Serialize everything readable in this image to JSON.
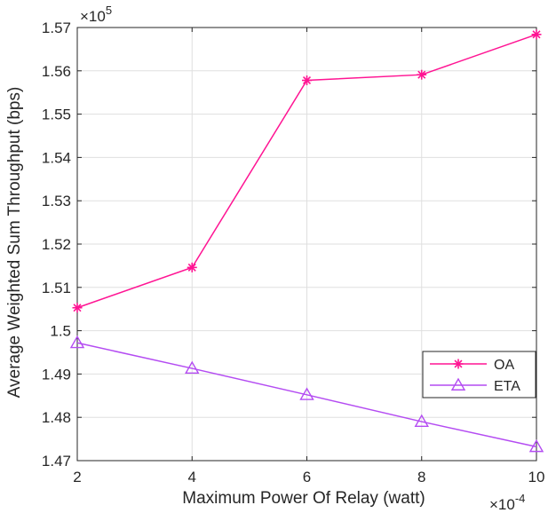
{
  "chart_data": {
    "type": "line",
    "xlabel": "Maximum Power Of Relay (watt)",
    "ylabel": "Average Weighted Sum Throughput (bps)",
    "x_exponent": "×10",
    "x_exponent_power": "-4",
    "y_exponent": "×10",
    "y_exponent_power": "5",
    "x": [
      2,
      4,
      6,
      8,
      10
    ],
    "xlim": [
      2,
      10
    ],
    "ylim": [
      1.47,
      1.57
    ],
    "x_ticks": [
      2,
      4,
      6,
      8,
      10
    ],
    "x_tick_labels": [
      "2",
      "4",
      "6",
      "8",
      "10"
    ],
    "y_ticks": [
      1.47,
      1.48,
      1.49,
      1.5,
      1.51,
      1.52,
      1.53,
      1.54,
      1.55,
      1.56,
      1.57
    ],
    "y_tick_labels": [
      "1.47",
      "1.48",
      "1.49",
      "1.5",
      "1.51",
      "1.52",
      "1.53",
      "1.54",
      "1.55",
      "1.56",
      "1.57"
    ],
    "grid": true,
    "legend_position": "bottom-right",
    "series": [
      {
        "name": "OA",
        "marker": "asterisk",
        "color": "#ff1493",
        "values": [
          1.5053,
          1.5146,
          1.5578,
          1.5591,
          1.5684
        ]
      },
      {
        "name": "ETA",
        "marker": "triangle",
        "color": "#b44cf2",
        "values": [
          1.4972,
          1.4913,
          1.4852,
          1.479,
          1.4732
        ]
      }
    ]
  }
}
